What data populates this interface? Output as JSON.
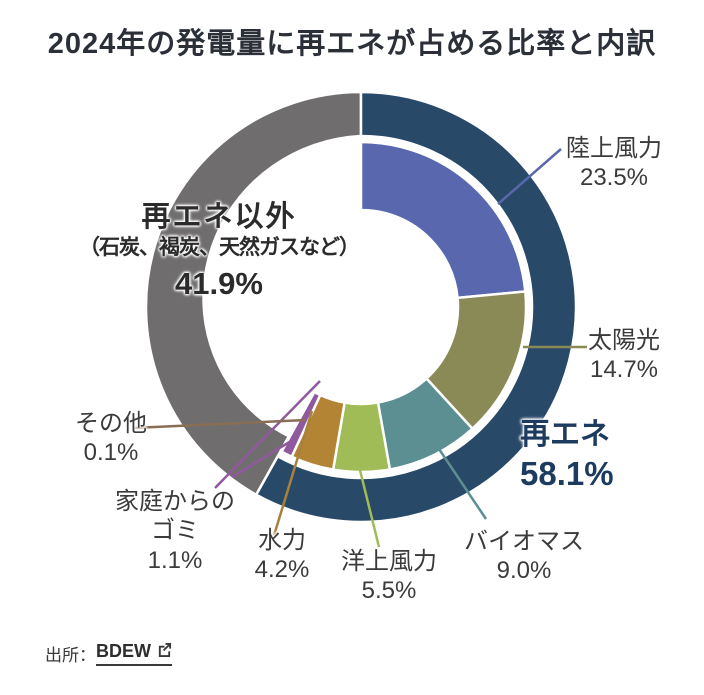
{
  "title": "2024年の発電量に再エネが占める比率と内訳",
  "chart_data": {
    "type": "pie",
    "subtype": "two-level-donut",
    "title": "2024年の発電量に再エネが占める比率と内訳",
    "units": "%",
    "outer_groups": [
      {
        "label": "再エネ",
        "value": 58.1,
        "color": "#294969"
      },
      {
        "label": "再エネ以外",
        "sublabel": "（石炭、褐炭、天然ガスなど）",
        "value": 41.9,
        "color": "#706d6e"
      }
    ],
    "breakdown": [
      {
        "label": "陸上風力",
        "value": 23.5,
        "color": "#5967ae"
      },
      {
        "label": "太陽光",
        "value": 14.7,
        "color": "#8a8a57"
      },
      {
        "label": "バイオマス",
        "value": 9.0,
        "color": "#5c8f92"
      },
      {
        "label": "洋上風力",
        "value": 5.5,
        "color": "#a0bc57"
      },
      {
        "label": "水力",
        "value": 4.2,
        "color": "#b28434"
      },
      {
        "label": "家庭からのゴミ",
        "value": 1.1,
        "color": "#90599e"
      },
      {
        "label": "その他",
        "value": 0.1,
        "color": "#8a6d55"
      }
    ],
    "legend_position": "around-with-leader-lines",
    "source": "BDEW"
  },
  "labels": {
    "rikujou": {
      "name": "陸上風力",
      "pct": "23.5%"
    },
    "taiyou": {
      "name": "太陽光",
      "pct": "14.7%"
    },
    "saiene": {
      "name": "再エネ",
      "pct": "58.1%"
    },
    "biomass": {
      "name": "バイオマス",
      "pct": "9.0%"
    },
    "youjou": {
      "name": "洋上風力",
      "pct": "5.5%"
    },
    "suiryoku": {
      "name": "水力",
      "pct": "4.2%"
    },
    "gomi": {
      "name": "家庭からのゴミ",
      "pct": "1.1%"
    },
    "sonota": {
      "name": "その他",
      "pct": "0.1%"
    },
    "hisaiene": {
      "name": "再エネ以外",
      "detail": "（石炭、褐炭、天然ガスなど）",
      "pct": "41.9%"
    }
  },
  "source": {
    "prefix": "出所：",
    "link": "BDEW"
  }
}
